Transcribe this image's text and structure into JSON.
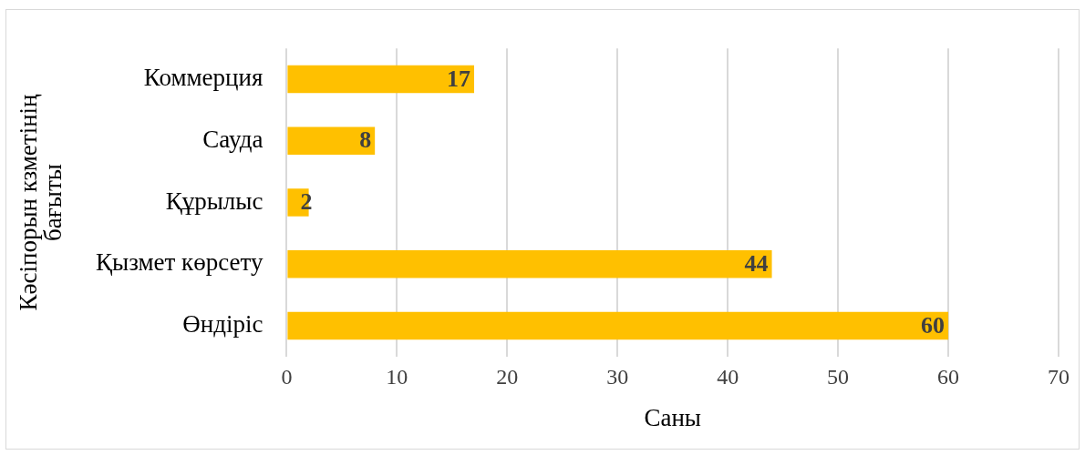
{
  "chart_data": {
    "type": "bar",
    "orientation": "horizontal",
    "categories": [
      "Коммерция",
      "Сауда",
      "Құрылыс",
      "Қызмет көрсету",
      "Өндіріс"
    ],
    "values": [
      17,
      8,
      2,
      44,
      60
    ],
    "color": "#ffc000",
    "xlim": [
      0,
      70
    ],
    "xticks": [
      0,
      10,
      20,
      30,
      40,
      50,
      60,
      70
    ],
    "grid": "x",
    "data_labels": true,
    "xlabel": "Саны",
    "ylabel": "Кәсіпорын кзметінің бағыты"
  }
}
